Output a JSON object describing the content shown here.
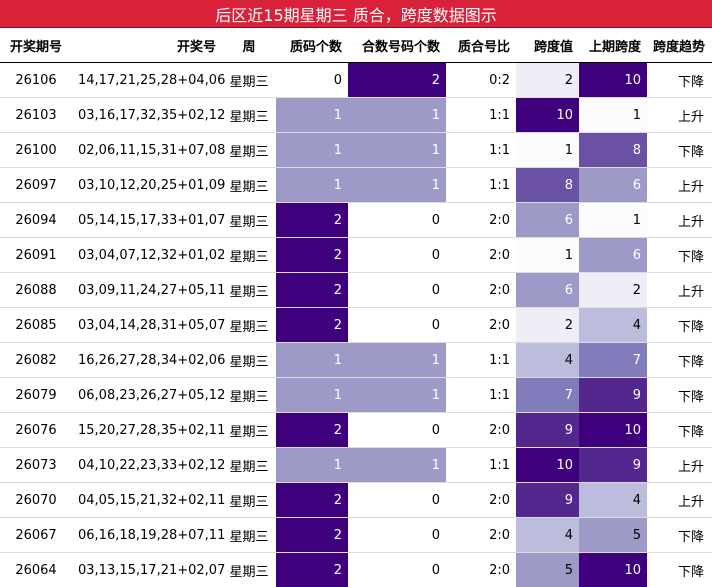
{
  "title": "后区近15期星期三 质合，跨度数据图示",
  "columns": [
    "开奖期号",
    "开奖号",
    "周",
    "质码个数",
    "合数号码个数",
    "质合号比",
    "跨度值",
    "上期跨度",
    "跨度趋势"
  ],
  "rows": [
    {
      "period": "26106",
      "numbers": "14,17,21,25,28+04,06",
      "weekday": "星期三",
      "prime": "0",
      "composite": "2",
      "ratio": "0:2",
      "span": "2",
      "prev_span": "10",
      "trend": "下降"
    },
    {
      "period": "26103",
      "numbers": "03,16,17,32,35+02,12",
      "weekday": "星期三",
      "prime": "1",
      "composite": "1",
      "ratio": "1:1",
      "span": "10",
      "prev_span": "1",
      "trend": "上升"
    },
    {
      "period": "26100",
      "numbers": "02,06,11,15,31+07,08",
      "weekday": "星期三",
      "prime": "1",
      "composite": "1",
      "ratio": "1:1",
      "span": "1",
      "prev_span": "8",
      "trend": "下降"
    },
    {
      "period": "26097",
      "numbers": "03,10,12,20,25+01,09",
      "weekday": "星期三",
      "prime": "1",
      "composite": "1",
      "ratio": "1:1",
      "span": "8",
      "prev_span": "6",
      "trend": "上升"
    },
    {
      "period": "26094",
      "numbers": "05,14,15,17,33+01,07",
      "weekday": "星期三",
      "prime": "2",
      "composite": "0",
      "ratio": "2:0",
      "span": "6",
      "prev_span": "1",
      "trend": "上升"
    },
    {
      "period": "26091",
      "numbers": "03,04,07,12,32+01,02",
      "weekday": "星期三",
      "prime": "2",
      "composite": "0",
      "ratio": "2:0",
      "span": "1",
      "prev_span": "6",
      "trend": "下降"
    },
    {
      "period": "26088",
      "numbers": "03,09,11,24,27+05,11",
      "weekday": "星期三",
      "prime": "2",
      "composite": "0",
      "ratio": "2:0",
      "span": "6",
      "prev_span": "2",
      "trend": "上升"
    },
    {
      "period": "26085",
      "numbers": "03,04,14,28,31+05,07",
      "weekday": "星期三",
      "prime": "2",
      "composite": "0",
      "ratio": "2:0",
      "span": "2",
      "prev_span": "4",
      "trend": "下降"
    },
    {
      "period": "26082",
      "numbers": "16,26,27,28,34+02,06",
      "weekday": "星期三",
      "prime": "1",
      "composite": "1",
      "ratio": "1:1",
      "span": "4",
      "prev_span": "7",
      "trend": "下降"
    },
    {
      "period": "26079",
      "numbers": "06,08,23,26,27+05,12",
      "weekday": "星期三",
      "prime": "1",
      "composite": "1",
      "ratio": "1:1",
      "span": "7",
      "prev_span": "9",
      "trend": "下降"
    },
    {
      "period": "26076",
      "numbers": "15,20,27,28,35+02,11",
      "weekday": "星期三",
      "prime": "2",
      "composite": "0",
      "ratio": "2:0",
      "span": "9",
      "prev_span": "10",
      "trend": "下降"
    },
    {
      "period": "26073",
      "numbers": "04,10,22,23,33+02,12",
      "weekday": "星期三",
      "prime": "1",
      "composite": "1",
      "ratio": "1:1",
      "span": "10",
      "prev_span": "9",
      "trend": "上升"
    },
    {
      "period": "26070",
      "numbers": "04,05,15,21,32+02,11",
      "weekday": "星期三",
      "prime": "2",
      "composite": "0",
      "ratio": "2:0",
      "span": "9",
      "prev_span": "4",
      "trend": "上升"
    },
    {
      "period": "26067",
      "numbers": "06,16,18,19,28+07,11",
      "weekday": "星期三",
      "prime": "2",
      "composite": "0",
      "ratio": "2:0",
      "span": "4",
      "prev_span": "5",
      "trend": "下降"
    },
    {
      "period": "26064",
      "numbers": "03,13,15,17,21+02,07",
      "weekday": "星期三",
      "prime": "2",
      "composite": "0",
      "ratio": "2:0",
      "span": "5",
      "prev_span": "10",
      "trend": "下降"
    }
  ],
  "colors": {
    "title_bg": "#d9213a",
    "count_scale": [
      "#ffffff",
      "#9e9ac8",
      "#3f007d"
    ],
    "span_scale_low": "#fcfbfd",
    "span_scale_high": "#3f007d"
  }
}
